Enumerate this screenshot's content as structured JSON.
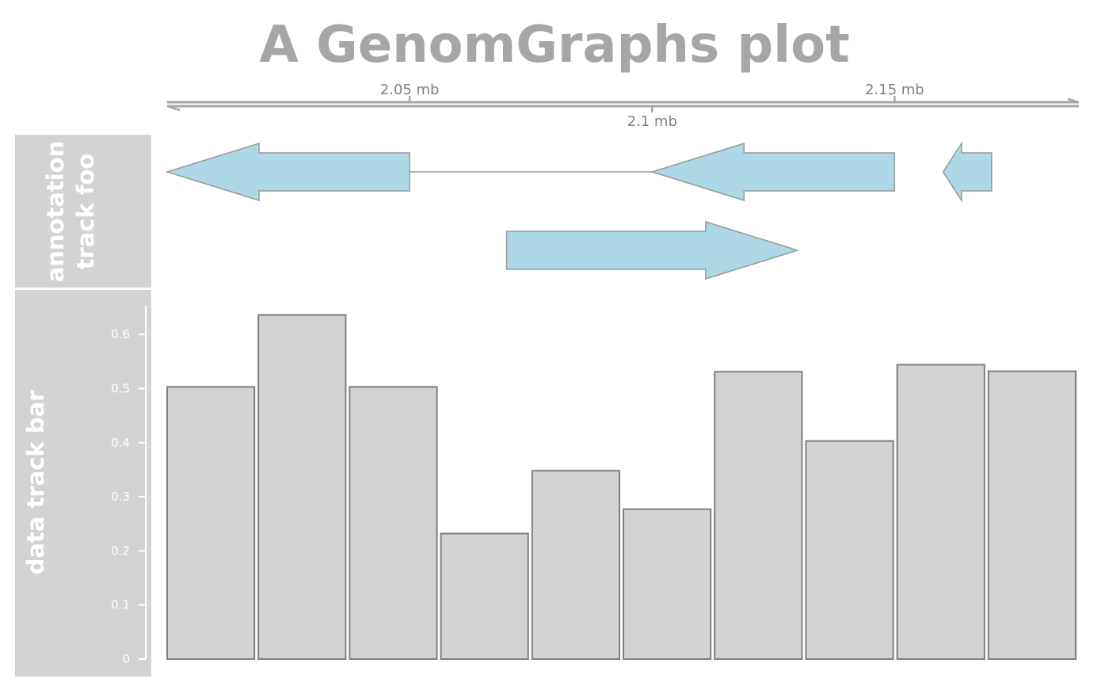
{
  "colors": {
    "title": "#a6a6a6",
    "axis": "#a6a6a6",
    "tick_text": "#808080",
    "panel_bg": "#d3d3d3",
    "panel_text": "#ffffff",
    "gene_fill": "#add8e6",
    "gene_stroke": "#999999",
    "bar_fill": "#d3d3d3",
    "bar_stroke": "#7f7f7f"
  },
  "chart_data": {
    "type": "bar",
    "title": "A GenomGraphs plot",
    "genomic_axis": {
      "unit": "mb",
      "range": [
        2.0,
        2.188
      ],
      "ticks": [
        {
          "value": 2.05,
          "label": "2.05 mb",
          "side": "top"
        },
        {
          "value": 2.1,
          "label": "2.1 mb",
          "side": "bottom"
        },
        {
          "value": 2.15,
          "label": "2.15 mb",
          "side": "top"
        }
      ]
    },
    "annotation_track": {
      "label": "annotation track foo",
      "label_lines": [
        "annotation",
        "track foo"
      ],
      "features": [
        {
          "row": 1,
          "strand": "-",
          "exons": [
            [
              2.0,
              2.05
            ],
            [
              2.1,
              2.15
            ]
          ]
        },
        {
          "row": 1,
          "strand": "-",
          "exons": [
            [
              2.16,
              2.17
            ]
          ]
        },
        {
          "row": 2,
          "strand": "+",
          "exons": [
            [
              2.07,
              2.13
            ]
          ]
        }
      ]
    },
    "data_track": {
      "label": "data track bar",
      "ylim": [
        0,
        0.65
      ],
      "yticks": [
        {
          "value": 0,
          "label": "0"
        },
        {
          "value": 0.1,
          "label": "0.1"
        },
        {
          "value": 0.2,
          "label": "0.2"
        },
        {
          "value": 0.3,
          "label": "0.3"
        },
        {
          "value": 0.4,
          "label": "0.4"
        },
        {
          "value": 0.5,
          "label": "0.5"
        },
        {
          "value": 0.6,
          "label": "0.6"
        }
      ],
      "values": [
        0.503,
        0.636,
        0.503,
        0.232,
        0.348,
        0.277,
        0.531,
        0.403,
        0.544,
        0.532
      ]
    }
  }
}
